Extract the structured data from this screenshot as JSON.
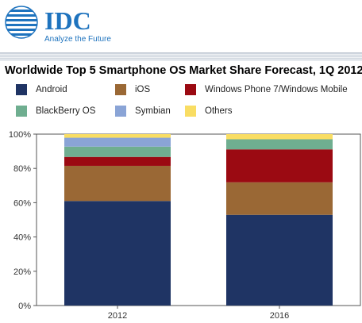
{
  "header": {
    "logo_text": "IDC",
    "tagline": "Analyze the Future"
  },
  "colors": {
    "brand_blue": "#1e73be",
    "stripe": "#dde3ea"
  },
  "chart_data": {
    "type": "bar",
    "stacked": true,
    "title": "Worldwide Top 5 Smartphone OS Market Share Forecast, 1Q 2012",
    "categories": [
      "2012",
      "2016"
    ],
    "y_ticks": [
      "0%",
      "20%",
      "40%",
      "60%",
      "80%",
      "100%"
    ],
    "ylim": [
      0,
      100
    ],
    "grid": false,
    "legend_position": "top",
    "series": [
      {
        "name": "Android",
        "color": "#1f3464",
        "values": [
          61.0,
          52.9
        ]
      },
      {
        "name": "iOS",
        "color": "#9a6835",
        "values": [
          20.5,
          19.0
        ]
      },
      {
        "name": "Windows Phone 7/Windows Mobile",
        "color": "#9b0a12",
        "values": [
          5.2,
          19.2
        ]
      },
      {
        "name": "BlackBerry OS",
        "color": "#6fae90",
        "values": [
          6.0,
          5.9
        ]
      },
      {
        "name": "Symbian",
        "color": "#8aa4d6",
        "values": [
          5.2,
          0.0
        ]
      },
      {
        "name": "Others",
        "color": "#f9dd63",
        "values": [
          2.1,
          3.0
        ]
      }
    ]
  }
}
